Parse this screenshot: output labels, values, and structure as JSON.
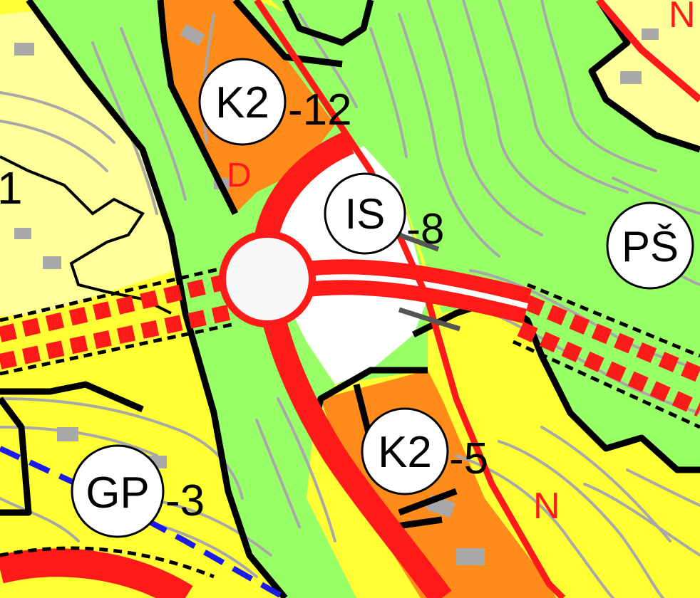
{
  "colors": {
    "residential_yellow": "#ffff33",
    "pale_yellow": "#ffff99",
    "green_zone": "#99ff66",
    "orange_zone": "#ff8c1a",
    "contour_gray": "#a8a8a8",
    "boundary_black": "#000000",
    "road_red": "#ff1a1a",
    "blue_line": "#1a1aee",
    "label_bg": "#ffffff"
  },
  "zone_labels": [
    {
      "code": "K2",
      "number": "-12"
    },
    {
      "code": "IS",
      "number": "-8"
    },
    {
      "code": "PŠ",
      "number": ""
    },
    {
      "code": "K2",
      "number": "-5"
    },
    {
      "code": "GP",
      "number": "-3"
    }
  ],
  "letter_marks": [
    {
      "text": "D"
    },
    {
      "text": "N"
    },
    {
      "text": "N"
    },
    {
      "text": "1"
    }
  ],
  "icons": {
    "roundabout": "roundabout-icon"
  }
}
